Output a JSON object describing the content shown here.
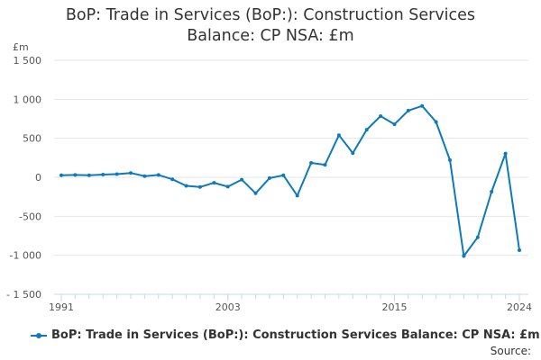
{
  "chart_data": {
    "type": "line",
    "title_lines": [
      "BoP: Trade in Services (BoP:): Construction Services",
      "Balance: CP NSA: £m"
    ],
    "ylabel": "£m",
    "xlabel": "",
    "x": [
      1991,
      1992,
      1993,
      1994,
      1995,
      1996,
      1997,
      1998,
      1999,
      2000,
      2001,
      2002,
      2003,
      2004,
      2005,
      2006,
      2007,
      2008,
      2009,
      2010,
      2011,
      2012,
      2013,
      2014,
      2015,
      2016,
      2017,
      2018,
      2019,
      2020,
      2021,
      2022,
      2023,
      2024
    ],
    "series": [
      {
        "name": "BoP: Trade in Services (BoP:): Construction Services Balance: CP NSA: £m",
        "color": "#0f7ab8",
        "values": [
          25,
          30,
          25,
          35,
          40,
          55,
          15,
          30,
          -25,
          -110,
          -125,
          -70,
          -120,
          -30,
          -205,
          -10,
          25,
          -235,
          185,
          160,
          540,
          310,
          610,
          785,
          680,
          855,
          915,
          710,
          220,
          -1010,
          -770,
          -185,
          305,
          -935
        ]
      }
    ],
    "ylim": [
      -1500,
      1500
    ],
    "yticks": [
      1500,
      1000,
      500,
      0,
      -500,
      -1000,
      -1500
    ],
    "ytick_labels": [
      "1 500",
      "1 000",
      "500",
      "0",
      "-500",
      "-1 000",
      "- 1 500"
    ],
    "xlim": [
      1991,
      2024
    ],
    "xticks": [
      1991,
      2003,
      2015,
      2024
    ],
    "xtick_labels": [
      "1991",
      "2003",
      "2015",
      "2024"
    ],
    "grid": true,
    "legend_position": "bottom-left",
    "source_label": "Source:"
  }
}
